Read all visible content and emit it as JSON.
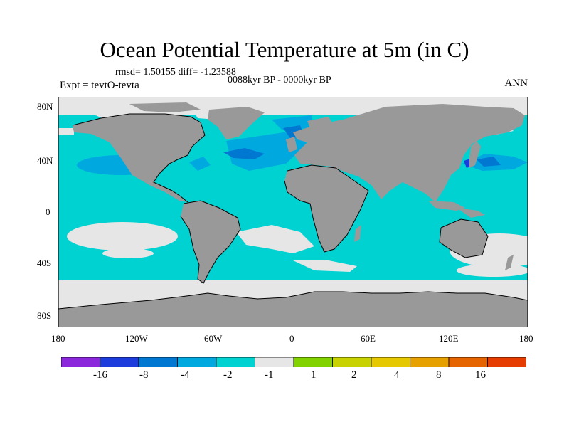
{
  "title": "Ocean Potential Temperature at 5m (in C)",
  "stats": "rmsd= 1.50155  diff= -1.23588",
  "period": "0088kyr BP - 0000kyr BP",
  "experiment": "Expt = tevtO-tevta",
  "season": "ANN",
  "lat_labels": [
    "80N",
    "40N",
    "0",
    "40S",
    "80S"
  ],
  "lon_labels": [
    "180",
    "120W",
    "60W",
    "0",
    "60E",
    "120E",
    "180"
  ],
  "colors": {
    "land": "#999999",
    "near_zero": "#e6e6e6",
    "minus_1_to_minus_2": "#00d2d2",
    "minus_2_to_minus_4": "#00a8e0",
    "minus_4_to_minus_8": "#0078d2",
    "minus_8_to_minus_16": "#1e3cdc",
    "below_minus_16": "#8c28dc"
  },
  "colorbar": {
    "colors": [
      "#8c28dc",
      "#1e3cdc",
      "#0078d2",
      "#00a8e0",
      "#00d2d2",
      "#e6e6e6",
      "#82d200",
      "#c8d200",
      "#e6c800",
      "#e6a000",
      "#e66400",
      "#e63c00"
    ],
    "labels": [
      "-16",
      "-8",
      "-4",
      "-2",
      "-1",
      "1",
      "2",
      "4",
      "8",
      "16"
    ]
  }
}
